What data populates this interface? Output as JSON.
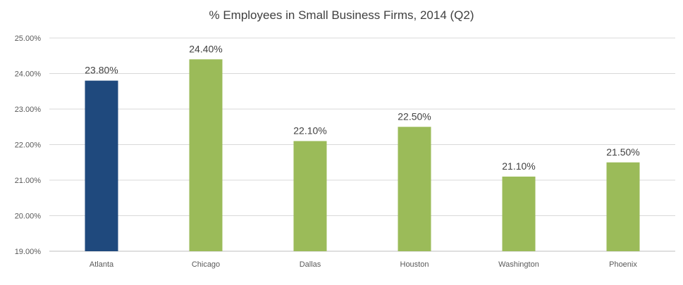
{
  "chart_data": {
    "type": "bar",
    "title": "% Employees in Small Business Firms, 2014 (Q2)",
    "xlabel": "",
    "ylabel": "",
    "categories": [
      "Atlanta",
      "Chicago",
      "Dallas",
      "Houston",
      "Washington",
      "Phoenix"
    ],
    "values": [
      23.8,
      24.4,
      22.1,
      22.5,
      21.1,
      21.5
    ],
    "data_labels": [
      "23.80%",
      "24.40%",
      "22.10%",
      "22.50%",
      "21.10%",
      "21.50%"
    ],
    "ylim": [
      19,
      25
    ],
    "y_ticks": [
      19,
      20,
      21,
      22,
      23,
      24,
      25
    ],
    "y_tick_labels": [
      "19.00%",
      "20.00%",
      "21.00%",
      "22.00%",
      "23.00%",
      "24.00%",
      "25.00%"
    ],
    "grid": true,
    "legend": "none",
    "colors": {
      "highlight": "#1f497d",
      "default": "#9bbb59",
      "grid": "#d9d9d9",
      "axis": "#bfbfbf"
    },
    "highlight_category": "Atlanta"
  }
}
